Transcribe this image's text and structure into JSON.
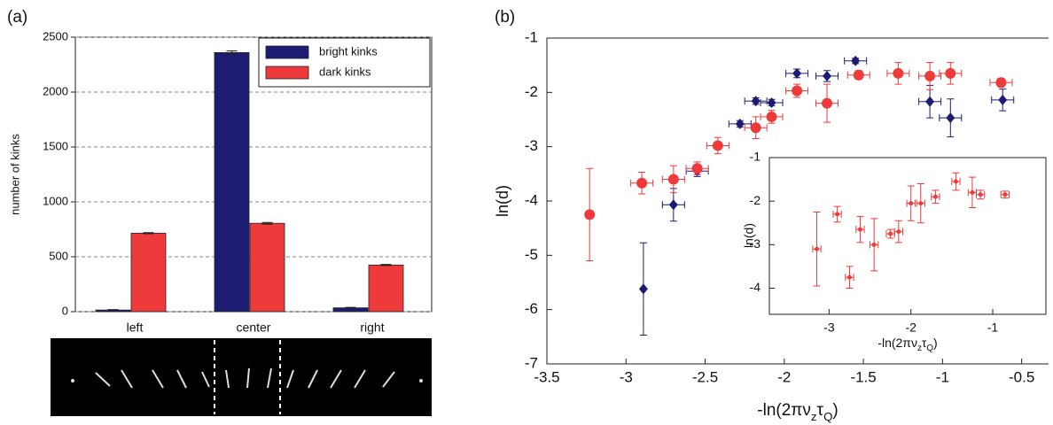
{
  "chart_data": [
    {
      "type": "bar",
      "panel_label": "(a)",
      "ylabel": "number of kinks",
      "categories": [
        "left",
        "center",
        "right"
      ],
      "series": [
        {
          "name": "bright kinks",
          "color": "#1c1c73",
          "values": [
            15,
            2360,
            35
          ],
          "errors": [
            4,
            15,
            4
          ]
        },
        {
          "name": "dark kinks",
          "color": "#ee3a3a",
          "values": [
            715,
            805,
            425
          ],
          "errors": [
            5,
            8,
            5
          ]
        }
      ],
      "ylim": [
        0,
        2500
      ],
      "yticks": [
        0,
        500,
        1000,
        1500,
        2000,
        2500
      ],
      "grid": true,
      "legend": "upper right"
    },
    {
      "type": "scatter",
      "panel_label": "(b)",
      "ylabel": "ln(d)",
      "xlabel": [
        "-ln(2πν",
        "z",
        "τ",
        "Q",
        ")"
      ],
      "xlim": [
        -3.5,
        -0.33
      ],
      "ylim": [
        -7,
        -1
      ],
      "xticks": [
        -3.5,
        -3,
        -2.5,
        -2,
        -1.5,
        -1,
        -0.5
      ],
      "yticks": [
        -7,
        -6,
        -5,
        -4,
        -3,
        -2,
        -1
      ],
      "series": [
        {
          "color": "#1c1c73",
          "marker": "diamond",
          "x": [
            -2.89,
            -2.7,
            -2.55,
            -2.28,
            -2.18,
            -2.08,
            -1.92,
            -1.73,
            -1.55,
            -1.08,
            -0.95,
            -0.62
          ],
          "y": [
            -5.62,
            -4.07,
            -3.45,
            -2.58,
            -2.16,
            -2.19,
            -1.65,
            -1.7,
            -1.42,
            -2.17,
            -2.47,
            -2.14
          ],
          "xerr": [
            0,
            0.07,
            0.07,
            0.07,
            0.07,
            0.07,
            0.07,
            0.07,
            0.07,
            0.07,
            0.07,
            0.07
          ],
          "yerr": [
            0.85,
            0.3,
            0.1,
            0.06,
            0.06,
            0.06,
            0.08,
            0.1,
            0.05,
            0.3,
            0.35,
            0.2
          ]
        },
        {
          "color": "#ee3a3a",
          "marker": "circle",
          "x": [
            -3.23,
            -2.9,
            -2.7,
            -2.55,
            -2.42,
            -2.18,
            -2.08,
            -1.92,
            -1.73,
            -1.53,
            -1.28,
            -1.08,
            -0.95,
            -0.63
          ],
          "y": [
            -4.25,
            -3.67,
            -3.6,
            -3.4,
            -2.98,
            -2.65,
            -2.45,
            -1.97,
            -2.2,
            -1.68,
            -1.65,
            -1.7,
            -1.65,
            -1.82
          ],
          "xerr": [
            0,
            0.07,
            0.07,
            0.07,
            0.07,
            0.07,
            0.07,
            0.07,
            0.07,
            0.07,
            0.07,
            0.07,
            0.07,
            0.07
          ],
          "yerr": [
            0.85,
            0.2,
            0.25,
            0.12,
            0.15,
            0.2,
            0.12,
            0.12,
            0.35,
            0.08,
            0.2,
            0.25,
            0.2,
            0.08
          ]
        }
      ]
    },
    {
      "type": "scatter",
      "ylabel": "ln(d)",
      "xlabel": [
        "-ln(2πν",
        "z",
        "τ",
        "Q",
        ")"
      ],
      "xlim": [
        -3.73,
        -0.35
      ],
      "ylim": [
        -4.6,
        -1
      ],
      "xticks": [
        -3,
        -2,
        -1
      ],
      "yticks": [
        -4,
        -3,
        -2,
        -1
      ],
      "series": [
        {
          "color": "#ee3a3a",
          "marker": "small",
          "x": [
            -3.15,
            -2.9,
            -2.75,
            -2.62,
            -2.45,
            -2.25,
            -2.15,
            -2.0,
            -1.88,
            -1.7,
            -1.45,
            -1.25,
            -1.15,
            -0.85
          ],
          "y": [
            -3.1,
            -2.3,
            -3.75,
            -2.65,
            -3.0,
            -2.75,
            -2.7,
            -2.05,
            -2.05,
            -1.9,
            -1.55,
            -1.8,
            -1.85,
            -1.85
          ],
          "xerr": [
            0.05,
            0.05,
            0.05,
            0.05,
            0.05,
            0.05,
            0.05,
            0.05,
            0.05,
            0.05,
            0.05,
            0.05,
            0.05,
            0.05
          ],
          "yerr": [
            0.85,
            0.18,
            0.25,
            0.3,
            0.6,
            0.1,
            0.25,
            0.4,
            0.45,
            0.15,
            0.2,
            0.35,
            0.1,
            0.08
          ]
        }
      ]
    }
  ]
}
